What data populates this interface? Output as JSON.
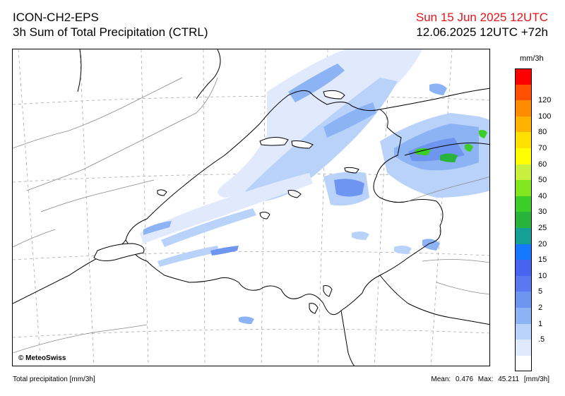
{
  "header": {
    "model": "ICON-CH2-EPS",
    "product": "3h Sum of Total Precipitation (CTRL)",
    "valid_time": "Sun 15 Jun 2025 12UTC",
    "run_time": "12.06.2025 12UTC +72h"
  },
  "map": {
    "credit": "© MeteoSwiss"
  },
  "legend": {
    "unit": "mm/3h",
    "levels": [
      {
        "label": "",
        "color": "#ff0000"
      },
      {
        "label": "120",
        "color": "#ff4f00"
      },
      {
        "label": "100",
        "color": "#ff8c00"
      },
      {
        "label": "80",
        "color": "#ffb300"
      },
      {
        "label": "70",
        "color": "#ffdf00"
      },
      {
        "label": "60",
        "color": "#ffff00"
      },
      {
        "label": "50",
        "color": "#c8f03c"
      },
      {
        "label": "40",
        "color": "#82e61e"
      },
      {
        "label": "30",
        "color": "#3ccd28"
      },
      {
        "label": "25",
        "color": "#28b43c"
      },
      {
        "label": "20",
        "color": "#14a096"
      },
      {
        "label": "15",
        "color": "#1478ff"
      },
      {
        "label": "10",
        "color": "#4664f0"
      },
      {
        "label": "5",
        "color": "#5a78f0"
      },
      {
        "label": "2",
        "color": "#6e96f0"
      },
      {
        "label": "1",
        "color": "#8cb4f5"
      },
      {
        "label": ".5",
        "color": "#b9d2fa"
      },
      {
        "label": "",
        "color": "#e1eafd"
      },
      {
        "label": "",
        "color": "#ffffff"
      }
    ]
  },
  "footer": {
    "description": "Total precipitation [mm/3h]",
    "mean_label": "Mean:",
    "mean_value": "0.476",
    "max_label": "Max:",
    "max_value": "45.211",
    "unit": "[mm/3h]"
  }
}
